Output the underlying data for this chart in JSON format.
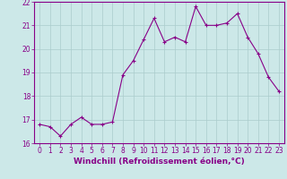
{
  "x": [
    0,
    1,
    2,
    3,
    4,
    5,
    6,
    7,
    8,
    9,
    10,
    11,
    12,
    13,
    14,
    15,
    16,
    17,
    18,
    19,
    20,
    21,
    22,
    23
  ],
  "y": [
    16.8,
    16.7,
    16.3,
    16.8,
    17.1,
    16.8,
    16.8,
    16.9,
    18.9,
    19.5,
    20.4,
    21.3,
    20.3,
    20.5,
    20.3,
    21.8,
    21.0,
    21.0,
    21.1,
    21.5,
    20.5,
    19.8,
    18.8,
    18.2
  ],
  "xlabel": "Windchill (Refroidissement éolien,°C)",
  "ylim": [
    16,
    22
  ],
  "xlim_min": -0.5,
  "xlim_max": 23.5,
  "yticks": [
    16,
    17,
    18,
    19,
    20,
    21,
    22
  ],
  "xticks": [
    0,
    1,
    2,
    3,
    4,
    5,
    6,
    7,
    8,
    9,
    10,
    11,
    12,
    13,
    14,
    15,
    16,
    17,
    18,
    19,
    20,
    21,
    22,
    23
  ],
  "line_color": "#880088",
  "marker": "+",
  "bg_color": "#cce8e8",
  "grid_color": "#aacccc",
  "tick_label_fontsize": 5.5,
  "xlabel_fontsize": 6.5
}
